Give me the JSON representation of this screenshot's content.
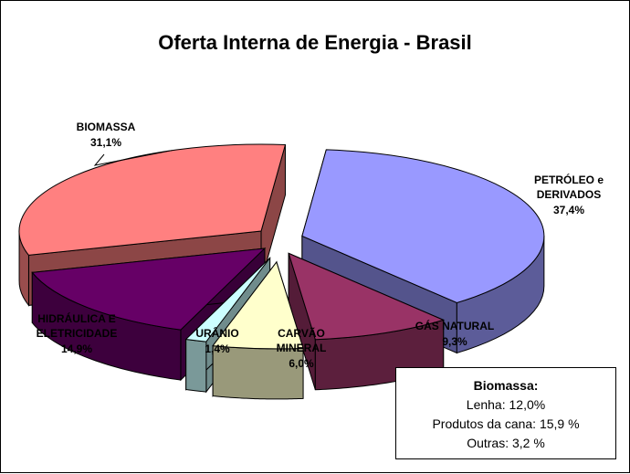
{
  "chart_data": {
    "type": "pie",
    "title": "Oferta Interna de Energia - Brasil",
    "slices": [
      {
        "label_lines": [
          "PETRÓLEO e",
          "DERIVADOS"
        ],
        "value_label": "37,4%",
        "value": 37.4,
        "color": "#9999ff"
      },
      {
        "label_lines": [
          "GÁS NATURAL"
        ],
        "value_label": "9,3%",
        "value": 9.3,
        "color": "#993366"
      },
      {
        "label_lines": [
          "CARVÃO",
          "MINERAL"
        ],
        "value_label": "6,0%",
        "value": 6.0,
        "color": "#ffffcc"
      },
      {
        "label_lines": [
          "URÂNIO"
        ],
        "value_label": "1,4%",
        "value": 1.4,
        "color": "#ccffff"
      },
      {
        "label_lines": [
          "HIDRÁULICA E",
          "ELETRICIDADE"
        ],
        "value_label": "14,9%",
        "value": 14.9,
        "color": "#660066"
      },
      {
        "label_lines": [
          "BIOMASSA"
        ],
        "value_label": "31,1%",
        "value": 31.1,
        "color": "#ff8080"
      }
    ]
  },
  "note": {
    "title": "Biomassa:",
    "rows": [
      {
        "label": "Lenha:",
        "value": "12,0%"
      },
      {
        "label": "Produtos da cana:",
        "value": "15,9 %"
      },
      {
        "label": "Outras:",
        "value": "3,2  %"
      }
    ]
  }
}
